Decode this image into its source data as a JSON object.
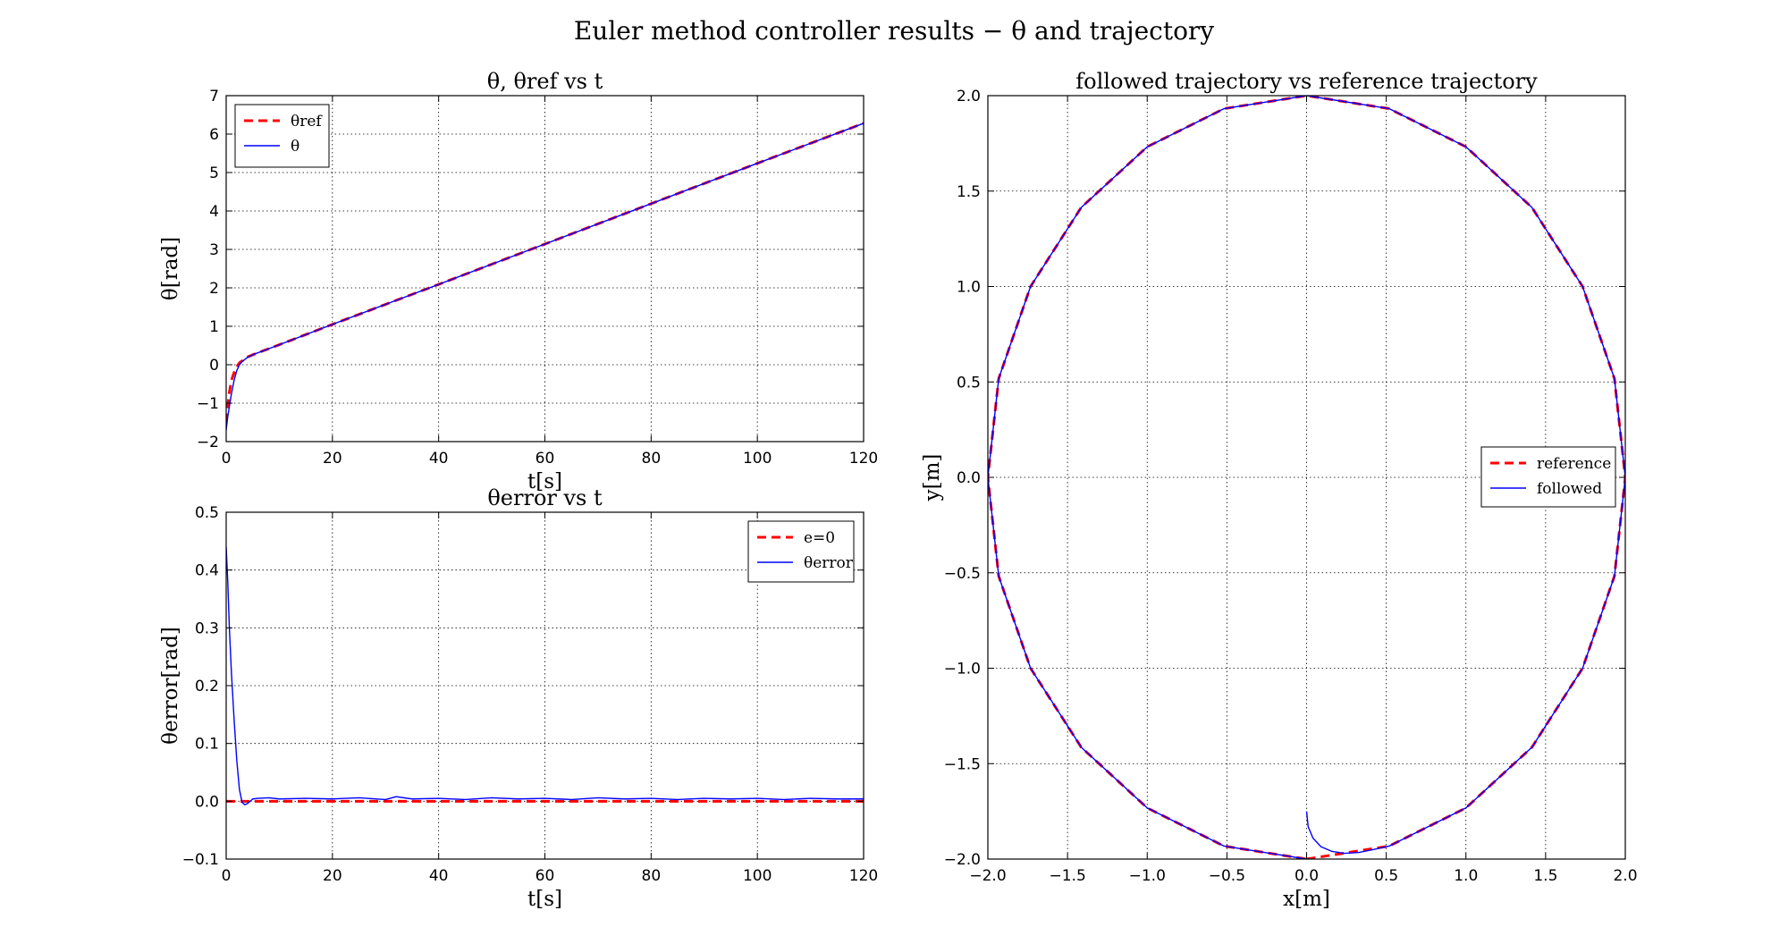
{
  "figure": {
    "suptitle": "Euler method controller results −  θ and trajectory"
  },
  "colors": {
    "reference": "#ff0000",
    "measured": "#0000ff",
    "grid": "#000000",
    "axes": "#000000",
    "background": "#ffffff"
  },
  "chart_data": [
    {
      "id": "theta",
      "type": "line",
      "title": "θ,  θref vs t",
      "xlabel": "t[s]",
      "ylabel": "θ[rad]",
      "xlim": [
        0,
        120
      ],
      "ylim": [
        -2,
        7
      ],
      "xticks": [
        0,
        20,
        40,
        60,
        80,
        100,
        120
      ],
      "yticks": [
        -2,
        -1,
        0,
        1,
        2,
        3,
        4,
        5,
        6,
        7
      ],
      "grid": true,
      "legend_position": "top-left",
      "series": [
        {
          "name": "θref",
          "style": "dashed",
          "color": "#ff0000",
          "x": [
            0,
            0.5,
            1,
            1.5,
            2,
            2.5,
            3,
            4,
            5,
            10,
            20,
            40,
            60,
            80,
            100,
            120
          ],
          "y": [
            -1.5,
            -0.8,
            -0.4,
            -0.2,
            -0.05,
            0.05,
            0.1,
            0.2,
            0.26,
            0.52,
            1.05,
            2.09,
            3.14,
            4.19,
            5.24,
            6.28
          ]
        },
        {
          "name": "θ",
          "style": "solid",
          "color": "#0000ff",
          "x": [
            0,
            0.3,
            0.7,
            1,
            1.5,
            2,
            2.5,
            3,
            4,
            5,
            10,
            20,
            40,
            60,
            80,
            100,
            120
          ],
          "y": [
            -1.7,
            -1.35,
            -1.0,
            -0.75,
            -0.4,
            -0.15,
            0.0,
            0.08,
            0.19,
            0.26,
            0.52,
            1.05,
            2.09,
            3.14,
            4.19,
            5.24,
            6.28
          ]
        }
      ]
    },
    {
      "id": "error",
      "type": "line",
      "title": "θerror vs t",
      "xlabel": "t[s]",
      "ylabel": "θerror[rad]",
      "xlim": [
        0,
        120
      ],
      "ylim": [
        -0.1,
        0.5
      ],
      "xticks": [
        0,
        20,
        40,
        60,
        80,
        100,
        120
      ],
      "yticks": [
        -0.1,
        0.0,
        0.1,
        0.2,
        0.3,
        0.4,
        0.5
      ],
      "ytick_decimals": 1,
      "grid": true,
      "legend_position": "top-right",
      "series": [
        {
          "name": "e=0",
          "style": "dashed",
          "color": "#ff0000",
          "x": [
            0,
            120
          ],
          "y": [
            0,
            0
          ]
        },
        {
          "name": "θerror",
          "style": "solid",
          "color": "#0000ff",
          "x": [
            0,
            0.3,
            0.6,
            1,
            1.5,
            2,
            2.5,
            3,
            3.5,
            4,
            5,
            6,
            8,
            10,
            15,
            20,
            25,
            30,
            32,
            35,
            40,
            45,
            50,
            55,
            60,
            65,
            70,
            75,
            80,
            85,
            90,
            95,
            100,
            105,
            110,
            115,
            120
          ],
          "y": [
            0.44,
            0.38,
            0.3,
            0.22,
            0.14,
            0.07,
            0.02,
            -0.002,
            -0.006,
            -0.004,
            0.004,
            0.005,
            0.006,
            0.004,
            0.005,
            0.004,
            0.006,
            0.003,
            0.008,
            0.004,
            0.005,
            0.003,
            0.006,
            0.004,
            0.005,
            0.003,
            0.006,
            0.004,
            0.005,
            0.003,
            0.005,
            0.004,
            0.005,
            0.003,
            0.005,
            0.004,
            0.004
          ]
        }
      ]
    },
    {
      "id": "trajectory",
      "type": "line",
      "title": "followed trajectory vs reference trajectory",
      "xlabel": "x[m]",
      "ylabel": "y[m]",
      "xlim": [
        -2.0,
        2.0
      ],
      "ylim": [
        -2.0,
        2.0
      ],
      "xticks": [
        -2.0,
        -1.5,
        -1.0,
        -0.5,
        0.0,
        0.5,
        1.0,
        1.5,
        2.0
      ],
      "yticks": [
        -2.0,
        -1.5,
        -1.0,
        -0.5,
        0.0,
        0.5,
        1.0,
        1.5,
        2.0
      ],
      "xtick_decimals": 1,
      "ytick_decimals": 1,
      "grid": true,
      "legend_position": "center-right",
      "series": [
        {
          "name": "reference",
          "style": "dashed",
          "color": "#ff0000",
          "x": [
            0,
            0.5176,
            1.0,
            1.4142,
            1.7321,
            1.9319,
            2.0,
            1.9319,
            1.7321,
            1.4142,
            1.0,
            0.5176,
            0,
            -0.5176,
            -1.0,
            -1.4142,
            -1.7321,
            -1.9319,
            -2.0,
            -1.9319,
            -1.7321,
            -1.4142,
            -1.0,
            -0.5176,
            0
          ],
          "y": [
            -2.0,
            -1.9319,
            -1.7321,
            -1.4142,
            -1.0,
            -0.5176,
            0,
            0.5176,
            1.0,
            1.4142,
            1.7321,
            1.9319,
            2.0,
            1.9319,
            1.7321,
            1.4142,
            1.0,
            0.5176,
            0,
            -0.5176,
            -1.0,
            -1.4142,
            -1.7321,
            -1.9319,
            -2.0
          ]
        },
        {
          "name": "followed",
          "style": "solid",
          "color": "#0000ff",
          "x": [
            0,
            0.01,
            0.04,
            0.09,
            0.16,
            0.24,
            0.33,
            0.42,
            0.5176,
            1.0,
            1.4142,
            1.7321,
            1.9319,
            2.0,
            1.9319,
            1.7321,
            1.4142,
            1.0,
            0.5176,
            0,
            -0.5176,
            -1.0,
            -1.4142,
            -1.7321,
            -1.9319,
            -2.0,
            -1.9319,
            -1.7321,
            -1.4142,
            -1.0,
            -0.5176,
            0,
            0.02
          ],
          "y": [
            -1.75,
            -1.83,
            -1.89,
            -1.935,
            -1.96,
            -1.97,
            -1.965,
            -1.95,
            -1.932,
            -1.732,
            -1.414,
            -1.0,
            -0.518,
            0,
            0.518,
            1.0,
            1.414,
            1.732,
            1.932,
            2.0,
            1.932,
            1.732,
            1.414,
            1.0,
            0.518,
            0,
            -0.518,
            -1.0,
            -1.414,
            -1.732,
            -1.932,
            -2.0,
            -2.0
          ]
        }
      ]
    }
  ]
}
